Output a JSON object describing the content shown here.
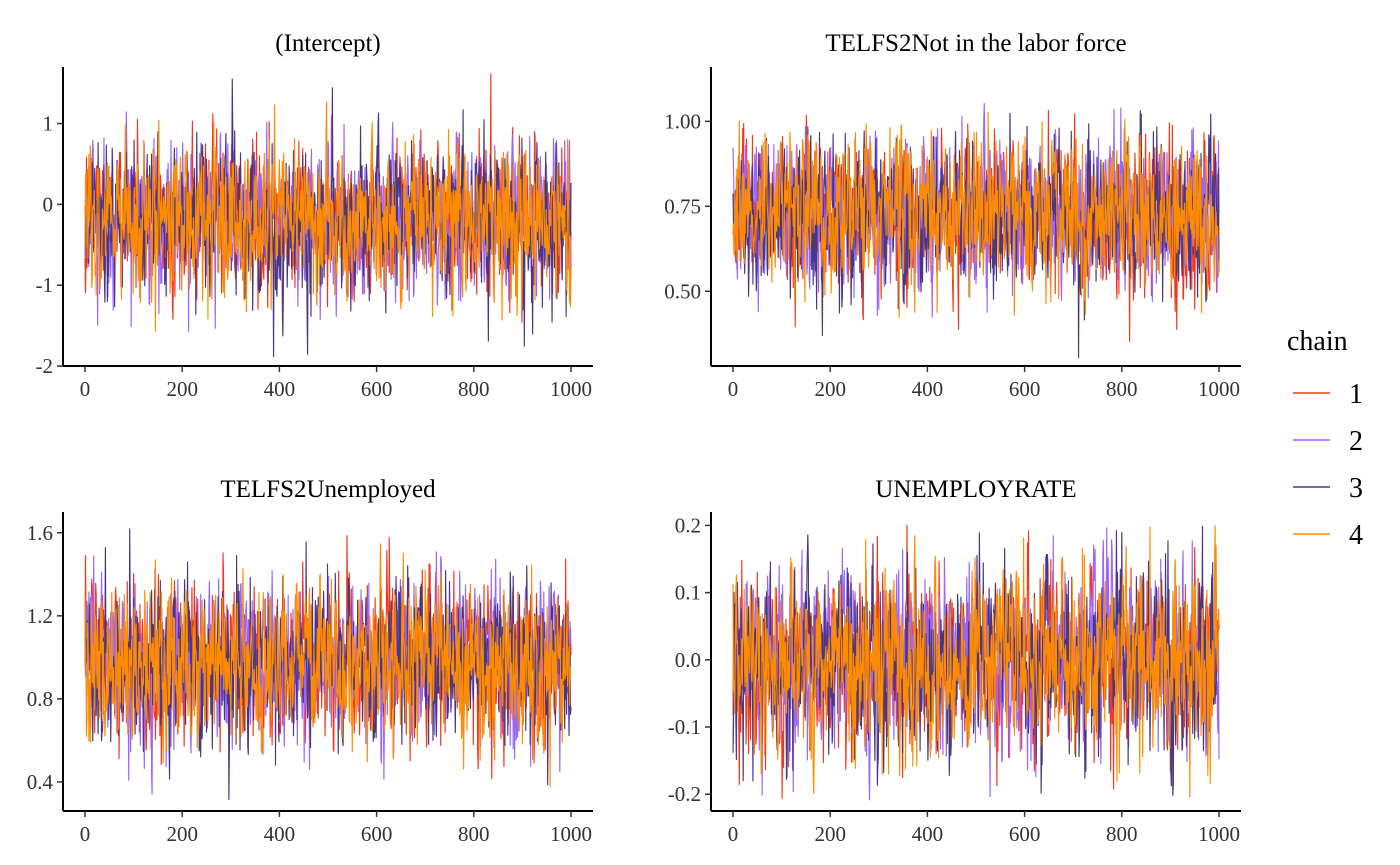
{
  "legend": {
    "title": "chain",
    "entries": [
      {
        "label": "1",
        "color": "#F0381E"
      },
      {
        "label": "2",
        "color": "#9966FF"
      },
      {
        "label": "3",
        "color": "#4B3680"
      },
      {
        "label": "4",
        "color": "#FF8C00"
      }
    ]
  },
  "chart_data": [
    {
      "type": "line",
      "title": "(Intercept)",
      "xlim": [
        0,
        1000
      ],
      "ylim": [
        -2.0,
        1.7
      ],
      "x_ticks": [
        0,
        200,
        400,
        600,
        800,
        1000
      ],
      "x_tick_labels": [
        "0",
        "200",
        "400",
        "600",
        "800",
        "1000"
      ],
      "y_ticks": [
        -2,
        -1,
        0,
        1
      ],
      "y_tick_labels": [
        "-2",
        "-1",
        "0",
        "1"
      ],
      "trace": {
        "n_draws": 1000,
        "center": -0.2,
        "sd": 0.45,
        "min": -1.9,
        "max": 1.62
      },
      "grid": false
    },
    {
      "type": "line",
      "title": "TELFS2Not in the labor force",
      "xlim": [
        0,
        1000
      ],
      "ylim": [
        0.28,
        1.16
      ],
      "x_ticks": [
        0,
        200,
        400,
        600,
        800,
        1000
      ],
      "x_tick_labels": [
        "0",
        "200",
        "400",
        "600",
        "800",
        "1000"
      ],
      "y_ticks": [
        0.5,
        0.75,
        1.0
      ],
      "y_tick_labels": [
        "0.50",
        "0.75",
        "1.00"
      ],
      "trace": {
        "n_draws": 1000,
        "center": 0.73,
        "sd": 0.11,
        "min": 0.3,
        "max": 1.14
      },
      "grid": false
    },
    {
      "type": "line",
      "title": "TELFS2Unemployed",
      "xlim": [
        0,
        1000
      ],
      "ylim": [
        0.26,
        1.7
      ],
      "x_ticks": [
        0,
        200,
        400,
        600,
        800,
        1000
      ],
      "x_tick_labels": [
        "0",
        "200",
        "400",
        "600",
        "800",
        "1000"
      ],
      "y_ticks": [
        0.4,
        0.8,
        1.2,
        1.6
      ],
      "y_tick_labels": [
        "0.4",
        "0.8",
        "1.2",
        "1.6"
      ],
      "trace": {
        "n_draws": 1000,
        "center": 0.98,
        "sd": 0.19,
        "min": 0.31,
        "max": 1.64
      },
      "grid": false
    },
    {
      "type": "line",
      "title": "UNEMPLOYRATE",
      "xlim": [
        0,
        1000
      ],
      "ylim": [
        -0.225,
        0.22
      ],
      "x_ticks": [
        0,
        200,
        400,
        600,
        800,
        1000
      ],
      "x_tick_labels": [
        "0",
        "200",
        "400",
        "600",
        "800",
        "1000"
      ],
      "y_ticks": [
        -0.2,
        -0.1,
        0.0,
        0.1,
        0.2
      ],
      "y_tick_labels": [
        "-0.2",
        "-0.1",
        "0.0",
        "0.1",
        "0.2"
      ],
      "trace": {
        "n_draws": 1000,
        "center": 0.0,
        "sd": 0.065,
        "min": -0.21,
        "max": 0.2
      },
      "grid": false
    }
  ]
}
